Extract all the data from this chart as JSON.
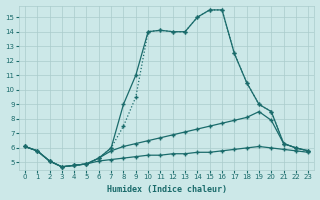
{
  "xlabel": "Humidex (Indice chaleur)",
  "ylabel": "",
  "bg_color": "#cce8e8",
  "grid_color": "#aacccc",
  "line_color": "#1a6b6b",
  "xlim": [
    -0.5,
    23.5
  ],
  "ylim": [
    4.5,
    15.8
  ],
  "xticks": [
    0,
    1,
    2,
    3,
    4,
    5,
    6,
    7,
    8,
    9,
    10,
    11,
    12,
    13,
    14,
    15,
    16,
    17,
    18,
    19,
    20,
    21,
    22,
    23
  ],
  "yticks": [
    5,
    6,
    7,
    8,
    9,
    10,
    11,
    12,
    13,
    14,
    15
  ],
  "curve_dotted": {
    "x": [
      0,
      1,
      2,
      3,
      4,
      5,
      6,
      7,
      8,
      9,
      10,
      11,
      12,
      13,
      14,
      15,
      16,
      17,
      18,
      19,
      20,
      21,
      22,
      23
    ],
    "y": [
      6.1,
      5.8,
      5.1,
      4.7,
      4.8,
      4.9,
      5.3,
      6.0,
      7.5,
      9.5,
      14.0,
      14.1,
      14.0,
      14.0,
      15.0,
      15.5,
      15.5,
      12.5,
      10.5,
      9.0,
      8.5,
      6.3,
      6.0,
      5.8
    ]
  },
  "curve_solid_peak": {
    "x": [
      0,
      1,
      2,
      3,
      4,
      5,
      6,
      7,
      8,
      9,
      10,
      11,
      12,
      13,
      14,
      15,
      16,
      17,
      18,
      19,
      20,
      21,
      22,
      23
    ],
    "y": [
      6.1,
      5.8,
      5.1,
      4.7,
      4.8,
      4.9,
      5.3,
      6.0,
      9.0,
      11.0,
      14.0,
      14.1,
      14.0,
      14.0,
      15.0,
      15.5,
      15.5,
      12.5,
      10.5,
      9.0,
      8.5,
      6.3,
      6.0,
      5.8
    ]
  },
  "curve_gradual1": {
    "x": [
      0,
      1,
      2,
      3,
      4,
      5,
      6,
      7,
      8,
      9,
      10,
      11,
      12,
      13,
      14,
      15,
      16,
      17,
      18,
      19,
      20,
      21,
      22,
      23
    ],
    "y": [
      6.1,
      5.8,
      5.1,
      4.7,
      4.8,
      4.9,
      5.3,
      5.8,
      6.1,
      6.3,
      6.5,
      6.7,
      6.9,
      7.1,
      7.3,
      7.5,
      7.7,
      7.9,
      8.1,
      8.5,
      7.9,
      6.3,
      6.0,
      5.8
    ]
  },
  "curve_flat": {
    "x": [
      0,
      1,
      2,
      3,
      4,
      5,
      6,
      7,
      8,
      9,
      10,
      11,
      12,
      13,
      14,
      15,
      16,
      17,
      18,
      19,
      20,
      21,
      22,
      23
    ],
    "y": [
      6.1,
      5.8,
      5.1,
      4.7,
      4.8,
      4.9,
      5.1,
      5.2,
      5.3,
      5.4,
      5.5,
      5.5,
      5.6,
      5.6,
      5.7,
      5.7,
      5.8,
      5.9,
      6.0,
      6.1,
      6.0,
      5.9,
      5.8,
      5.7
    ]
  }
}
